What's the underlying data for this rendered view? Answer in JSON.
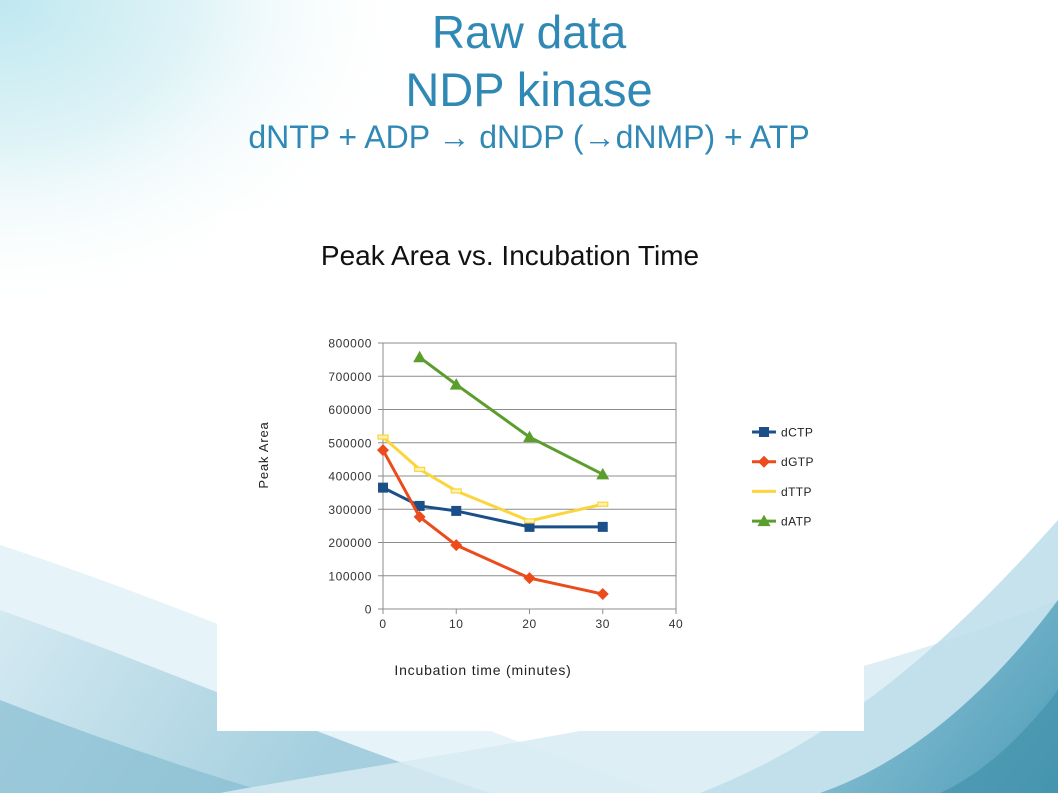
{
  "slide": {
    "title_line1": "Raw data",
    "title_line2": "NDP kinase",
    "title_line3": "dNTP + ADP → dNDP (→dNMP) + ATP"
  },
  "colors": {
    "title_text": "#3089b5",
    "chart_background": "#ffffff",
    "gridline": "#8c8c8c"
  },
  "chart_data": {
    "type": "line",
    "title": "Peak Area vs. Incubation Time",
    "xlabel": "Incubation time (minutes)",
    "ylabel": "Peak Area",
    "xlim": [
      0,
      40
    ],
    "ylim": [
      0,
      800000
    ],
    "xticks": [
      0,
      10,
      20,
      30,
      40
    ],
    "yticks": [
      0,
      100000,
      200000,
      300000,
      400000,
      500000,
      600000,
      700000,
      800000
    ],
    "grid": "horizontal",
    "legend_position": "right",
    "series": [
      {
        "name": "dCTP",
        "color": "#1b4f8a",
        "marker": "square",
        "x": [
          0,
          5,
          10,
          20,
          30
        ],
        "y": [
          365000,
          310000,
          295000,
          247000,
          247000
        ]
      },
      {
        "name": "dGTP",
        "color": "#ec4b1c",
        "marker": "diamond",
        "x": [
          0,
          5,
          10,
          20,
          30
        ],
        "y": [
          478000,
          277000,
          192000,
          93000,
          45000
        ]
      },
      {
        "name": "dTTP",
        "color": "#fbd53c",
        "marker": "dash",
        "x": [
          0,
          5,
          10,
          20,
          30
        ],
        "y": [
          517000,
          420000,
          355000,
          265000,
          315000
        ]
      },
      {
        "name": "dATP",
        "color": "#5c9e2e",
        "marker": "triangle",
        "x": [
          5,
          10,
          20,
          30
        ],
        "y": [
          757000,
          675000,
          517000,
          405000
        ]
      }
    ]
  }
}
